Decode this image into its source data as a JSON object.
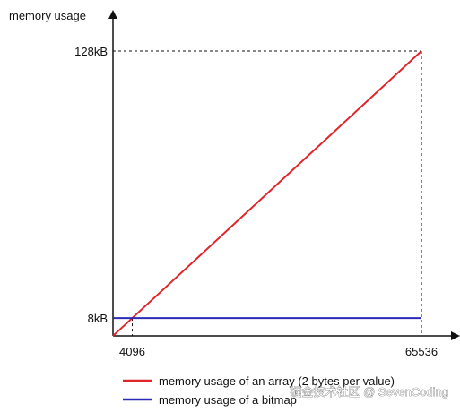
{
  "chart_data": {
    "type": "line",
    "ylabel": "memory usage",
    "xlabel": "",
    "x_ticks": [
      {
        "value": 4096,
        "label": "4096"
      },
      {
        "value": 65536,
        "label": "65536"
      }
    ],
    "y_ticks": [
      {
        "value": 8,
        "label": "8kB"
      },
      {
        "value": 128,
        "label": "128kB"
      }
    ],
    "xlim": [
      0,
      65536
    ],
    "ylim": [
      0,
      128
    ],
    "grid": false,
    "legend_position": "bottom",
    "series": [
      {
        "name": "memory usage of an array (2 bytes per value)",
        "color": "#e0262b",
        "x": [
          0,
          65536
        ],
        "y": [
          0,
          128
        ]
      },
      {
        "name": "memory usage of a bitmap",
        "color": "#2b2bb8",
        "x": [
          0,
          65536
        ],
        "y": [
          8,
          8
        ]
      }
    ]
  },
  "watermark": "掘金技术社区 @ SevenCoding"
}
